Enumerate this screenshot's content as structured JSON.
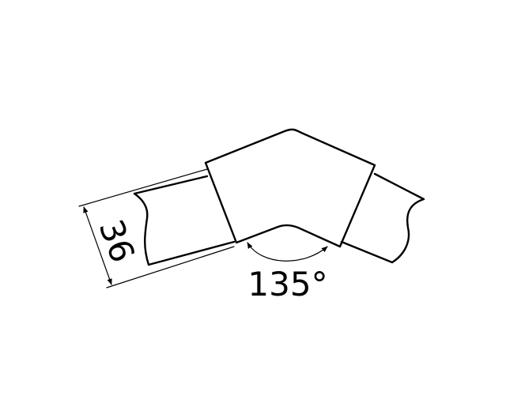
{
  "diagram": {
    "dimension_label": "36",
    "angle_label": "135°"
  }
}
